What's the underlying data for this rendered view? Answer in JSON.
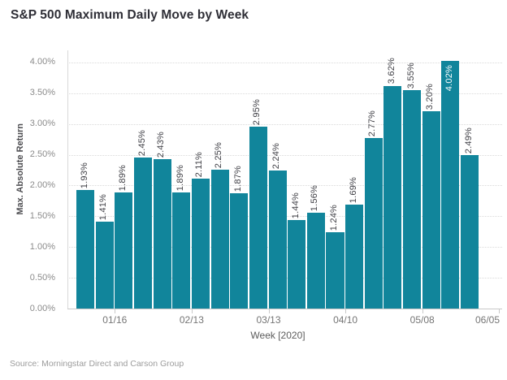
{
  "title": "S&P 500 Maximum Daily Move by Week",
  "source_note": "Source: Morningstar Direct and Carson Group",
  "colors": {
    "bar": "#11859b",
    "bar_label": "#414147",
    "bar_label_inside": "#ffffff",
    "gridline": "#dadada",
    "axis_line": "#c9c9c9",
    "y_tick_text": "#8b8b8b",
    "x_tick_text": "#757575",
    "axis_title_text": "#4e4e52",
    "title_text": "#2e2e36",
    "source_text": "#9c9c9c"
  },
  "chart_data": {
    "type": "bar",
    "title": "S&P 500 Maximum Daily Move by Week",
    "xlabel": "Week [2020]",
    "ylabel": "Max. Absolute Return",
    "values": [
      1.93,
      1.41,
      1.89,
      2.45,
      2.43,
      1.89,
      2.11,
      2.25,
      1.87,
      2.95,
      2.24,
      1.44,
      1.56,
      1.24,
      1.69,
      2.77,
      3.62,
      3.55,
      3.2,
      4.02,
      2.49
    ],
    "bar_labels": [
      "1.93%",
      "1.41%",
      "1.89%",
      "2.45%",
      "2.43%",
      "1.89%",
      "2.11%",
      "2.25%",
      "1.87%",
      "2.95%",
      "2.24%",
      "1.44%",
      "1.56%",
      "1.24%",
      "1.69%",
      "2.77%",
      "3.62%",
      "3.55%",
      "3.20%",
      "4.02%",
      "2.49%"
    ],
    "bar_label_inside_index": 19,
    "x_tick_labels": [
      "01/16",
      "02/13",
      "03/13",
      "04/10",
      "05/08",
      "06/05"
    ],
    "x_tick_after_bar": [
      2,
      6,
      10,
      14,
      18,
      22
    ],
    "y_tick_labels": [
      "0.00%",
      "0.50%",
      "1.00%",
      "1.50%",
      "2.00%",
      "2.50%",
      "3.00%",
      "3.50%",
      "4.00%"
    ],
    "y_tick_values": [
      0.0,
      0.5,
      1.0,
      1.5,
      2.0,
      2.5,
      3.0,
      3.5,
      4.0
    ],
    "ylim": [
      0,
      4.2
    ],
    "grid": "horizontal-dotted",
    "legend": "none"
  }
}
